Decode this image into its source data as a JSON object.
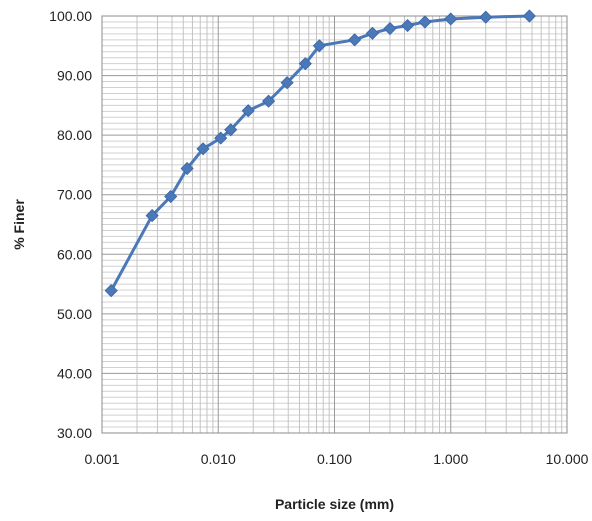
{
  "chart_data": {
    "type": "line",
    "title": "",
    "xlabel": "Particle size (mm)",
    "ylabel": "% Finer",
    "x_scale": "log",
    "xlim": [
      0.001,
      10
    ],
    "ylim": [
      30,
      100
    ],
    "x_ticks": [
      0.001,
      0.01,
      0.1,
      1,
      10
    ],
    "x_tick_labels": [
      "0.001",
      "0.010",
      "0.100",
      "1.000",
      "10.000"
    ],
    "y_ticks": [
      30,
      40,
      50,
      60,
      70,
      80,
      90,
      100
    ],
    "y_tick_labels": [
      "30.00",
      "40.00",
      "50.00",
      "60.00",
      "70.00",
      "80.00",
      "90.00",
      "100.00"
    ],
    "grid": true,
    "legend": "none",
    "series": [
      {
        "color": "#4a78b8",
        "marker": "diamond",
        "x": [
          0.0012,
          0.0027,
          0.0039,
          0.0054,
          0.0074,
          0.0105,
          0.0128,
          0.0181,
          0.0271,
          0.0391,
          0.0561,
          0.0741,
          0.149,
          0.212,
          0.3,
          0.425,
          0.6,
          1.0,
          2.0,
          4.75
        ],
        "y": [
          53.9,
          66.5,
          69.7,
          74.4,
          77.7,
          79.5,
          80.9,
          84.1,
          85.7,
          88.8,
          92.0,
          95.0,
          96.0,
          97.1,
          97.9,
          98.4,
          99.0,
          99.5,
          99.8,
          100.0
        ]
      }
    ]
  }
}
